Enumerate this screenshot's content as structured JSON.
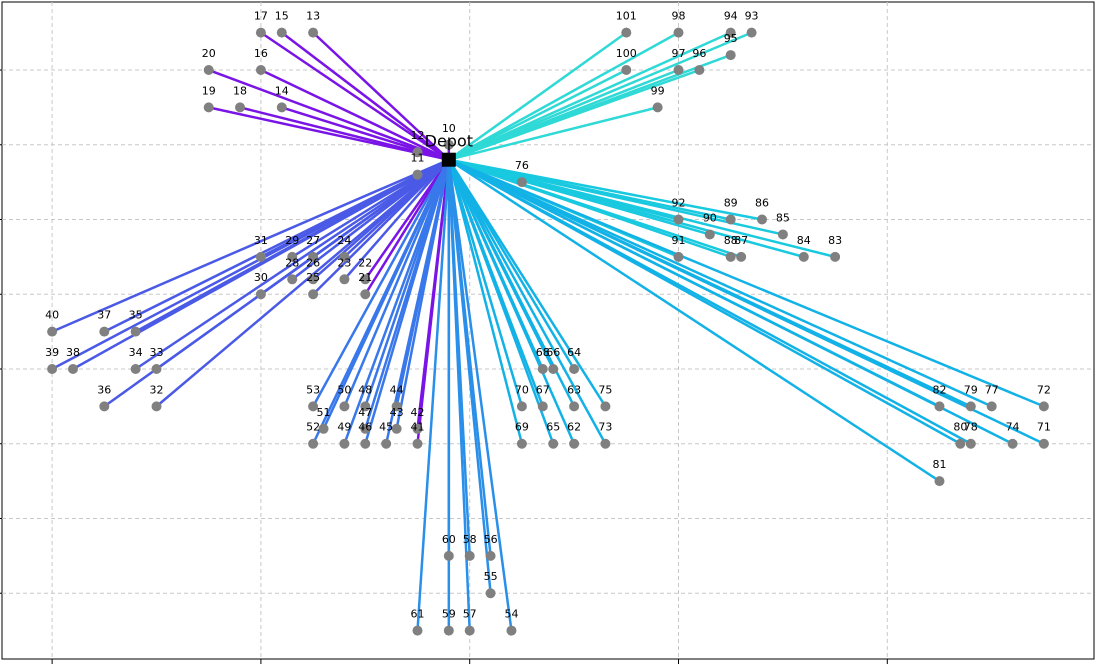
{
  "chart_data": {
    "type": "routes",
    "depot": {
      "label": "Depot",
      "x": 19,
      "y": 58
    },
    "xlim": [
      -2.4,
      49.9
    ],
    "ylim": [
      -8.8,
      79.1
    ],
    "xticks": [
      0,
      10,
      20,
      30,
      40
    ],
    "yticks": [
      0,
      10,
      20,
      30,
      40,
      50,
      60,
      70
    ],
    "grid": true,
    "series": [
      {
        "color": "#7a14e6",
        "labels": [
          17,
          15,
          13,
          20,
          16,
          19,
          18,
          14,
          12,
          10,
          11,
          22,
          21,
          42,
          41
        ],
        "x": [
          10,
          11,
          12.5,
          7.5,
          10,
          7.5,
          9,
          11,
          17.5,
          19,
          17.5,
          15,
          15,
          17.5,
          17.5
        ],
        "y": [
          75,
          75,
          75,
          70,
          70,
          65,
          65,
          65,
          59,
          60,
          56,
          42,
          40,
          22,
          20
        ]
      },
      {
        "color": "#2ed9d6",
        "labels": [
          101,
          98,
          94,
          93,
          100,
          97,
          96,
          95,
          99
        ],
        "x": [
          27.5,
          30,
          32.5,
          33.5,
          27.5,
          30,
          31,
          32.5,
          29
        ],
        "y": [
          75,
          75,
          75,
          75,
          70,
          70,
          70,
          72,
          65
        ]
      },
      {
        "color": "#18c9df",
        "labels": [
          76,
          92,
          89,
          86,
          90,
          85,
          91,
          88,
          87,
          84,
          83
        ],
        "x": [
          22.5,
          30,
          32.5,
          34,
          31.5,
          35,
          30,
          32.5,
          33,
          36,
          37.5
        ],
        "y": [
          55,
          50,
          50,
          50,
          48,
          48,
          45,
          45,
          45,
          45,
          45
        ]
      },
      {
        "color": "#12b2e6",
        "labels": [
          68,
          66,
          64,
          70,
          67,
          63,
          75,
          69,
          65,
          62,
          73,
          82,
          79,
          77,
          72,
          80,
          78,
          74,
          71,
          81
        ],
        "x": [
          23.5,
          24,
          25,
          22.5,
          23.5,
          25,
          26.5,
          22.5,
          24,
          25,
          26.5,
          42.5,
          44,
          45,
          47.5,
          43.5,
          44,
          46,
          47.5,
          42.5
        ],
        "y": [
          30,
          30,
          30,
          25,
          25,
          25,
          25,
          20,
          20,
          20,
          20,
          25,
          25,
          25,
          25,
          20,
          20,
          20,
          20,
          15
        ]
      },
      {
        "color": "#4a5ae6",
        "labels": [
          31,
          29,
          27,
          24,
          28,
          26,
          23,
          30,
          25,
          40,
          37,
          35,
          39,
          38,
          34,
          33,
          36,
          32
        ],
        "x": [
          10,
          11.5,
          12.5,
          14,
          11.5,
          12.5,
          14,
          10,
          12.5,
          0,
          2.5,
          4,
          0,
          1,
          4,
          5,
          2.5,
          5
        ],
        "y": [
          45,
          45,
          45,
          45,
          42,
          42,
          42,
          40,
          40,
          35,
          35,
          35,
          30,
          30,
          30,
          30,
          25,
          25
        ]
      },
      {
        "color": "#3878ea",
        "labels": [
          53,
          50,
          48,
          44,
          51,
          47,
          43,
          52,
          49,
          46,
          45
        ],
        "x": [
          12.5,
          14,
          15,
          16.5,
          13,
          15,
          16.5,
          12.5,
          14,
          15,
          16
        ],
        "y": [
          25,
          25,
          25,
          25,
          22,
          22,
          22,
          20,
          20,
          20,
          20
        ]
      },
      {
        "color": "#2a8fe8",
        "labels": [
          60,
          58,
          56,
          55,
          61,
          59,
          57,
          54
        ],
        "x": [
          19,
          20,
          21,
          21,
          17.5,
          19,
          20,
          22
        ],
        "y": [
          5,
          5,
          5,
          0,
          -5,
          -5,
          -5,
          -5
        ]
      }
    ]
  }
}
